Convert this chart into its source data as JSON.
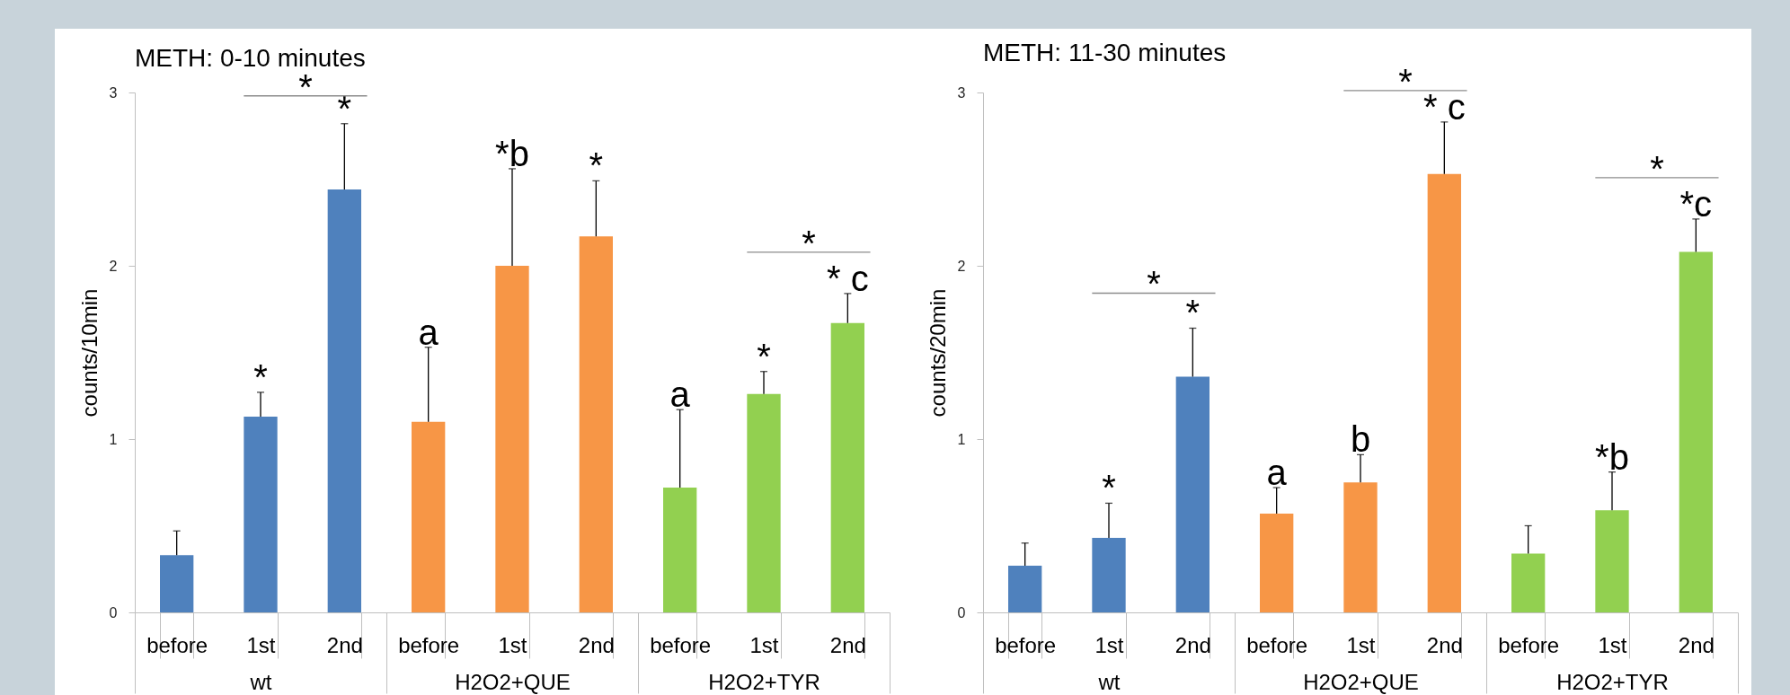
{
  "chart_data": [
    {
      "type": "bar",
      "title": "METH: 0-10 minutes",
      "ylabel": "counts/10min",
      "categories": [
        "wt",
        "H2O2+QUE",
        "H2O2+TYR"
      ],
      "series": [
        {
          "name": "before",
          "colors": [
            "#4f81bd",
            "#f79646",
            "#92d050"
          ],
          "values": [
            0.33,
            1.1,
            0.72
          ],
          "errors": [
            [
              0.33,
              0.47
            ],
            [
              1.1,
              1.53
            ],
            [
              0.72,
              1.17
            ]
          ],
          "value_labels": [
            null,
            "a",
            "a"
          ]
        },
        {
          "name": "1st",
          "colors": [
            "#4f81bd",
            "#f79646",
            "#92d050"
          ],
          "values": [
            1.13,
            2.0,
            1.26
          ],
          "errors": [
            [
              1.13,
              1.27
            ],
            [
              2.0,
              2.56
            ],
            [
              1.26,
              1.39
            ]
          ],
          "value_labels": [
            "*",
            "*b",
            "*"
          ]
        },
        {
          "name": "2nd",
          "colors": [
            "#4f81bd",
            "#f79646",
            "#92d050"
          ],
          "values": [
            2.44,
            2.17,
            1.67
          ],
          "errors": [
            [
              2.44,
              2.82
            ],
            [
              2.17,
              2.49
            ],
            [
              1.67,
              1.84
            ]
          ],
          "value_labels": [
            "*",
            "*",
            "* c"
          ]
        }
      ],
      "ylim": [
        0,
        3
      ],
      "yticks": [
        0,
        1,
        2,
        3
      ],
      "annotations": [
        "*",
        "*"
      ]
    },
    {
      "type": "bar",
      "title": "METH: 11-30 minutes",
      "ylabel": "counts/20min",
      "categories": [
        "wt",
        "H2O2+QUE",
        "H2O2+TYR"
      ],
      "series": [
        {
          "name": "before",
          "colors": [
            "#4f81bd",
            "#f79646",
            "#92d050"
          ],
          "values": [
            0.27,
            0.57,
            0.34
          ],
          "errors": [
            [
              0.27,
              0.4
            ],
            [
              0.57,
              0.72
            ],
            [
              0.34,
              0.5
            ]
          ],
          "value_labels": [
            null,
            "a",
            null
          ]
        },
        {
          "name": "1st",
          "colors": [
            "#4f81bd",
            "#f79646",
            "#92d050"
          ],
          "values": [
            0.43,
            0.75,
            0.59
          ],
          "errors": [
            [
              0.43,
              0.63
            ],
            [
              0.75,
              0.91
            ],
            [
              0.59,
              0.81
            ]
          ],
          "value_labels": [
            "*",
            "b",
            "*b"
          ]
        },
        {
          "name": "2nd",
          "colors": [
            "#4f81bd",
            "#f79646",
            "#92d050"
          ],
          "values": [
            1.36,
            2.53,
            2.08
          ],
          "errors": [
            [
              1.36,
              1.64
            ],
            [
              2.53,
              2.83
            ],
            [
              2.08,
              2.27
            ]
          ],
          "value_labels": [
            "*",
            "* c",
            "*c"
          ]
        }
      ],
      "ylim": [
        0,
        3
      ],
      "yticks": [
        0,
        1,
        2,
        3
      ],
      "annotations": [
        "*",
        "*",
        "*"
      ]
    }
  ]
}
